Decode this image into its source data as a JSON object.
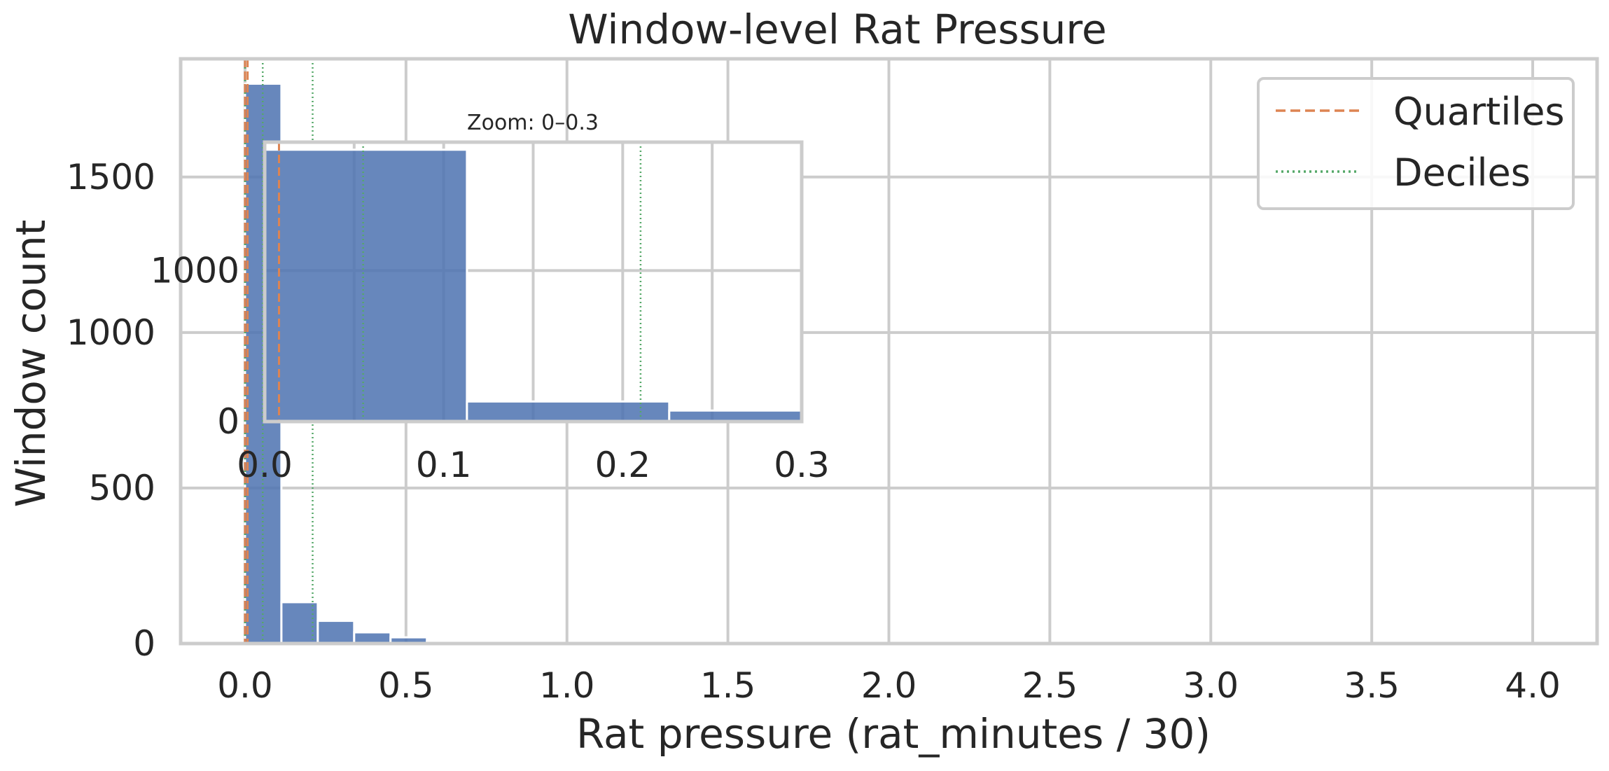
{
  "chart_data": {
    "type": "bar",
    "title": "Window-level Rat Pressure",
    "xlabel": "Rat pressure (rat_minutes / 30)",
    "ylabel": "Window count",
    "xlim": [
      -0.2,
      4.2
    ],
    "ylim": [
      0,
      1880
    ],
    "xticks": [
      "0.0",
      "0.5",
      "1.0",
      "1.5",
      "2.0",
      "2.5",
      "3.0",
      "3.5",
      "4.0"
    ],
    "yticks": [
      "0",
      "500",
      "1000",
      "1500"
    ],
    "grid": true,
    "bin_width": 0.113,
    "bins": [
      {
        "x": 0.0,
        "count": 1800
      },
      {
        "x": 0.113,
        "count": 133
      },
      {
        "x": 0.226,
        "count": 73
      },
      {
        "x": 0.339,
        "count": 36
      },
      {
        "x": 0.452,
        "count": 20
      },
      {
        "x": 0.565,
        "count": 6
      },
      {
        "x": 0.678,
        "count": 9
      },
      {
        "x": 0.791,
        "count": 6
      },
      {
        "x": 0.904,
        "count": 2
      }
    ],
    "quartiles": [
      0.0,
      0.0,
      0.008
    ],
    "deciles": [
      0.0,
      0.0,
      0.0,
      0.0,
      0.0,
      0.0,
      0.055,
      0.21
    ],
    "legend": {
      "position": "top-right",
      "entries": [
        {
          "label": "Quartiles",
          "color": "#dd8452",
          "style": "dashed"
        },
        {
          "label": "Deciles",
          "color": "#55a868",
          "style": "dotted"
        }
      ]
    },
    "inset": {
      "title": "Zoom: 0–0.3",
      "xlim": [
        0,
        0.3
      ],
      "ylim": [
        0,
        1850
      ],
      "xticks": [
        "0.0",
        "0.1",
        "0.2",
        "0.3"
      ],
      "yticks": [
        "0",
        "1000"
      ]
    }
  },
  "colors": {
    "bar": "#4c72b0",
    "quartile": "#dd8452",
    "decile": "#55a868",
    "grid": "#cccccc"
  }
}
